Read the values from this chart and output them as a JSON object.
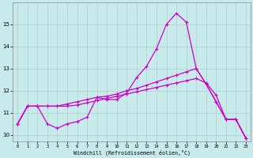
{
  "title": "",
  "xlabel": "Windchill (Refroidissement éolien,°C)",
  "ylabel": "",
  "background_color": "#c8eaea",
  "grid_color": "#b0d0d0",
  "line_color": "#cc00cc",
  "xlim": [
    -0.5,
    23.5
  ],
  "ylim": [
    9.7,
    16.0
  ],
  "xticks": [
    0,
    1,
    2,
    3,
    4,
    5,
    6,
    7,
    8,
    9,
    10,
    11,
    12,
    13,
    14,
    15,
    16,
    17,
    18,
    19,
    20,
    21,
    22,
    23
  ],
  "yticks": [
    10,
    11,
    12,
    13,
    14,
    15
  ],
  "line1": [
    10.5,
    11.3,
    11.3,
    10.5,
    10.3,
    10.5,
    10.6,
    10.8,
    11.7,
    11.6,
    11.6,
    11.9,
    12.6,
    13.1,
    13.9,
    15.0,
    15.5,
    15.1,
    13.0,
    12.3,
    11.5,
    10.7,
    10.7,
    9.85
  ],
  "line2": [
    10.5,
    11.3,
    11.3,
    11.3,
    11.3,
    11.4,
    11.5,
    11.6,
    11.7,
    11.75,
    11.85,
    12.0,
    12.1,
    12.25,
    12.4,
    12.55,
    12.7,
    12.85,
    13.0,
    12.3,
    11.5,
    10.7,
    10.7,
    9.85
  ],
  "line3": [
    10.5,
    11.3,
    11.3,
    11.3,
    11.3,
    11.3,
    11.35,
    11.45,
    11.55,
    11.65,
    11.75,
    11.85,
    11.95,
    12.05,
    12.15,
    12.25,
    12.35,
    12.45,
    12.55,
    12.35,
    11.8,
    10.7,
    10.7,
    9.85
  ]
}
